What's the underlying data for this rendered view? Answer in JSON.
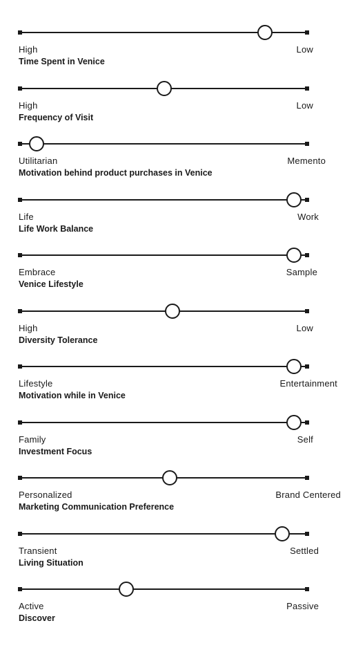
{
  "sliders": [
    {
      "title": "Time Spent in Venice",
      "left": "High",
      "right": "Low",
      "value": 0.85
    },
    {
      "title": "Frequency of Visit",
      "left": "High",
      "right": "Low",
      "value": 0.5
    },
    {
      "title": "Motivation behind product purchases in Venice",
      "left": "Utilitarian",
      "right": "Memento",
      "value": 0.06
    },
    {
      "title": "Life Work Balance",
      "left": "Life",
      "right": "Work",
      "value": 0.95
    },
    {
      "title": "Venice Lifestyle",
      "left": "Embrace",
      "right": "Sample",
      "value": 0.95
    },
    {
      "title": "Diversity Tolerance",
      "left": "High",
      "right": "Low",
      "value": 0.53
    },
    {
      "title": "Motivation while in Venice",
      "left": "Lifestyle",
      "right": "Entertainment",
      "value": 0.95
    },
    {
      "title": "Investment Focus",
      "left": "Family",
      "right": "Self",
      "value": 0.95
    },
    {
      "title": "Marketing Communication Preference",
      "left": "Personalized",
      "right": "Brand Centered",
      "value": 0.52
    },
    {
      "title": "Living Situation",
      "left": "Transient",
      "right": "Settled",
      "value": 0.91
    },
    {
      "title": "Discover",
      "left": "Active",
      "right": "Passive",
      "value": 0.37
    }
  ]
}
